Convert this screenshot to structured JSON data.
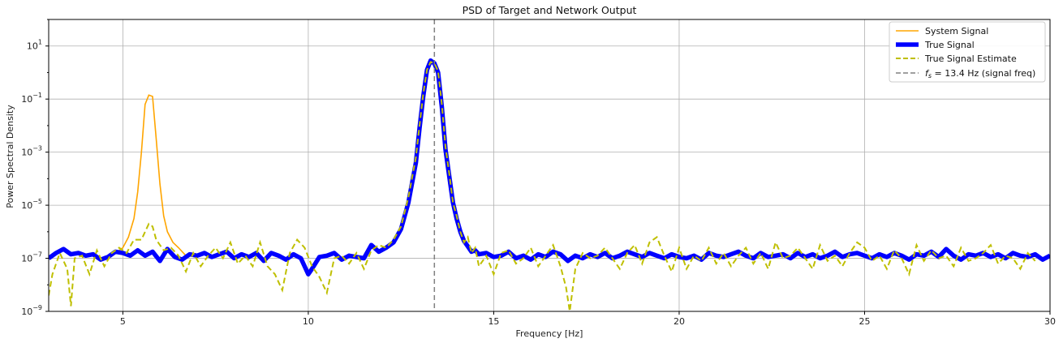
{
  "chart_data": {
    "type": "line",
    "title": "PSD of Target and Network Output",
    "xlabel": "Frequency [Hz]",
    "ylabel": "Power Spectral Density",
    "xlim": [
      3,
      30
    ],
    "ylim_log10": [
      -9,
      2
    ],
    "yscale": "log",
    "grid": true,
    "legend_position": "top-right",
    "x_ticks": [
      5,
      10,
      15,
      20,
      25,
      30
    ],
    "x_tick_labels": [
      "5",
      "10",
      "15",
      "20",
      "25",
      "30"
    ],
    "y_ticks_log10": [
      -9,
      -7,
      -5,
      -3,
      -1,
      1
    ],
    "y_tick_mantissa": "10",
    "y_tick_exponents": [
      "−9",
      "−7",
      "−5",
      "−3",
      "−1",
      "1"
    ],
    "vline": {
      "x": 13.4,
      "color": "#808080"
    },
    "legend": [
      {
        "label": "System Signal",
        "color": "#FFA500",
        "style": "solid"
      },
      {
        "label": "True Signal",
        "color": "#0000FF",
        "style": "thick"
      },
      {
        "label": "True Signal Estimate",
        "color": "#BFBF00",
        "style": "dashed"
      },
      {
        "label_prefix": "f",
        "label_sub": "s",
        "label_rest": " = 13.4 Hz (signal freq)",
        "color": "#808080",
        "style": "dashed"
      }
    ],
    "series": [
      {
        "name": "System Signal",
        "color": "#FFA500",
        "x": [
          4.8,
          5.0,
          5.15,
          5.3,
          5.4,
          5.5,
          5.6,
          5.7,
          5.8,
          5.9,
          6.0,
          6.1,
          6.2,
          6.35,
          6.5,
          6.7
        ],
        "log10_y": [
          -6.8,
          -6.6,
          -6.2,
          -5.5,
          -4.5,
          -3.0,
          -1.2,
          -0.85,
          -0.9,
          -2.5,
          -4.2,
          -5.4,
          -6.0,
          -6.4,
          -6.6,
          -6.9
        ]
      },
      {
        "name": "True Signal",
        "color": "#0000FF",
        "x": [
          3.0,
          3.2,
          3.4,
          3.6,
          3.8,
          4.0,
          4.2,
          4.4,
          4.6,
          4.8,
          5.0,
          5.2,
          5.4,
          5.6,
          5.8,
          6.0,
          6.2,
          6.4,
          6.6,
          6.8,
          7.0,
          7.2,
          7.4,
          7.6,
          7.8,
          8.0,
          8.2,
          8.4,
          8.6,
          8.8,
          9.0,
          9.2,
          9.4,
          9.6,
          9.8,
          10.0,
          10.1,
          10.3,
          10.5,
          10.7,
          10.9,
          11.1,
          11.3,
          11.5,
          11.7,
          11.9,
          12.1,
          12.3,
          12.5,
          12.7,
          12.9,
          13.0,
          13.1,
          13.2,
          13.3,
          13.4,
          13.5,
          13.6,
          13.7,
          13.8,
          13.9,
          14.0,
          14.1,
          14.2,
          14.3,
          14.4,
          14.5,
          14.6,
          14.8,
          15.0,
          15.2,
          15.4,
          15.6,
          15.8,
          16.0,
          16.2,
          16.4,
          16.6,
          16.8,
          17.0,
          17.2,
          17.4,
          17.6,
          17.8,
          18.0,
          18.2,
          18.4,
          18.6,
          18.8,
          19.0,
          19.2,
          19.4,
          19.6,
          19.8,
          20.0,
          20.2,
          20.4,
          20.6,
          20.8,
          21.0,
          21.2,
          21.4,
          21.6,
          21.8,
          22.0,
          22.2,
          22.4,
          22.6,
          22.8,
          23.0,
          23.2,
          23.4,
          23.6,
          23.8,
          24.0,
          24.2,
          24.4,
          24.6,
          24.8,
          25.0,
          25.2,
          25.4,
          25.6,
          25.8,
          26.0,
          26.2,
          26.4,
          26.6,
          26.8,
          27.0,
          27.2,
          27.4,
          27.6,
          27.8,
          28.0,
          28.2,
          28.4,
          28.6,
          28.8,
          29.0,
          29.2,
          29.4,
          29.6,
          29.8,
          30.0
        ],
        "log10_y": [
          -7.0,
          -6.8,
          -6.65,
          -6.85,
          -6.8,
          -6.9,
          -6.85,
          -7.05,
          -6.95,
          -6.75,
          -6.8,
          -6.9,
          -6.7,
          -6.9,
          -6.75,
          -7.1,
          -6.65,
          -6.95,
          -7.05,
          -6.85,
          -6.9,
          -6.8,
          -6.95,
          -6.85,
          -6.75,
          -7.0,
          -6.85,
          -6.95,
          -6.8,
          -7.1,
          -6.8,
          -6.9,
          -7.05,
          -6.85,
          -7.0,
          -7.6,
          -7.4,
          -6.95,
          -6.9,
          -6.8,
          -7.05,
          -6.9,
          -6.95,
          -7.0,
          -6.5,
          -6.75,
          -6.6,
          -6.4,
          -5.9,
          -4.9,
          -3.4,
          -2.1,
          -0.9,
          0.1,
          0.45,
          0.35,
          0.0,
          -1.3,
          -2.9,
          -3.9,
          -4.9,
          -5.5,
          -6.0,
          -6.35,
          -6.55,
          -6.75,
          -6.7,
          -6.85,
          -6.8,
          -6.95,
          -6.9,
          -6.75,
          -7.0,
          -6.9,
          -7.05,
          -6.85,
          -6.95,
          -6.75,
          -6.85,
          -7.1,
          -6.9,
          -7.0,
          -6.85,
          -6.95,
          -6.8,
          -7.0,
          -6.9,
          -6.75,
          -6.85,
          -6.95,
          -6.8,
          -6.9,
          -7.0,
          -6.85,
          -6.95,
          -7.0,
          -6.9,
          -7.05,
          -6.8,
          -6.9,
          -6.95,
          -6.85,
          -6.75,
          -6.9,
          -7.0,
          -6.8,
          -6.95,
          -6.9,
          -6.85,
          -7.0,
          -6.8,
          -6.95,
          -6.85,
          -7.0,
          -6.9,
          -6.75,
          -6.95,
          -6.85,
          -6.8,
          -6.9,
          -7.0,
          -6.85,
          -6.95,
          -6.8,
          -6.9,
          -7.05,
          -6.85,
          -6.9,
          -6.75,
          -6.95,
          -6.65,
          -6.9,
          -7.05,
          -6.85,
          -6.9,
          -6.8,
          -6.95,
          -6.85,
          -7.0,
          -6.8,
          -6.9,
          -6.95,
          -6.85,
          -7.05,
          -6.9
        ]
      },
      {
        "name": "True Signal Estimate",
        "color": "#BFBF00",
        "x": [
          3.0,
          3.1,
          3.3,
          3.5,
          3.6,
          3.7,
          3.9,
          4.1,
          4.3,
          4.5,
          4.7,
          4.9,
          5.1,
          5.3,
          5.5,
          5.7,
          5.8,
          5.9,
          6.1,
          6.3,
          6.5,
          6.7,
          6.9,
          7.1,
          7.3,
          7.5,
          7.7,
          7.9,
          8.1,
          8.3,
          8.5,
          8.7,
          8.9,
          9.1,
          9.3,
          9.5,
          9.7,
          9.9,
          10.1,
          10.3,
          10.5,
          10.7,
          10.9,
          11.1,
          11.3,
          11.5,
          11.7,
          11.9,
          12.1,
          12.3,
          12.5,
          12.7,
          12.9,
          13.0,
          13.1,
          13.2,
          13.3,
          13.4,
          13.5,
          13.6,
          13.7,
          13.8,
          13.9,
          14.0,
          14.1,
          14.2,
          14.3,
          14.4,
          14.5,
          14.6,
          14.8,
          15.0,
          15.2,
          15.4,
          15.6,
          15.8,
          16.0,
          16.2,
          16.4,
          16.6,
          16.8,
          16.95,
          17.05,
          17.2,
          17.4,
          17.6,
          17.8,
          18.0,
          18.2,
          18.4,
          18.6,
          18.8,
          19.0,
          19.2,
          19.4,
          19.6,
          19.8,
          20.0,
          20.2,
          20.4,
          20.6,
          20.8,
          21.0,
          21.2,
          21.4,
          21.6,
          21.8,
          22.0,
          22.2,
          22.4,
          22.6,
          22.8,
          23.0,
          23.2,
          23.4,
          23.6,
          23.8,
          24.0,
          24.2,
          24.4,
          24.6,
          24.8,
          25.0,
          25.2,
          25.4,
          25.6,
          25.8,
          26.0,
          26.2,
          26.4,
          26.6,
          26.8,
          27.0,
          27.2,
          27.4,
          27.6,
          27.8,
          28.0,
          28.2,
          28.4,
          28.6,
          28.8,
          29.0,
          29.2,
          29.4,
          29.6,
          29.8,
          30.0
        ],
        "log10_y": [
          -8.4,
          -7.6,
          -6.8,
          -7.4,
          -8.8,
          -7.0,
          -6.9,
          -7.6,
          -6.7,
          -7.3,
          -6.8,
          -6.6,
          -6.8,
          -6.3,
          -6.3,
          -5.7,
          -5.8,
          -6.3,
          -6.7,
          -6.6,
          -6.9,
          -7.5,
          -6.8,
          -7.3,
          -6.9,
          -6.6,
          -7.0,
          -6.4,
          -7.2,
          -6.9,
          -7.3,
          -6.4,
          -7.3,
          -7.6,
          -8.2,
          -6.8,
          -6.3,
          -6.6,
          -7.3,
          -7.7,
          -8.3,
          -7.0,
          -6.9,
          -7.2,
          -6.8,
          -7.4,
          -6.7,
          -6.5,
          -6.6,
          -6.3,
          -5.8,
          -4.7,
          -3.2,
          -2.0,
          -0.8,
          0.1,
          0.4,
          0.35,
          0.05,
          -1.2,
          -2.8,
          -3.8,
          -4.9,
          -5.4,
          -6.0,
          -6.4,
          -6.2,
          -6.8,
          -6.6,
          -7.3,
          -6.9,
          -7.6,
          -6.8,
          -6.7,
          -7.2,
          -7.0,
          -6.6,
          -7.3,
          -6.9,
          -6.5,
          -7.3,
          -8.1,
          -9.0,
          -7.4,
          -6.8,
          -7.0,
          -6.9,
          -6.6,
          -7.0,
          -7.4,
          -6.8,
          -6.5,
          -7.2,
          -6.4,
          -6.2,
          -6.9,
          -7.5,
          -6.6,
          -7.4,
          -6.9,
          -7.1,
          -6.6,
          -7.2,
          -6.8,
          -7.3,
          -6.9,
          -6.6,
          -7.2,
          -6.8,
          -7.4,
          -6.4,
          -7.0,
          -6.9,
          -6.6,
          -7.0,
          -7.4,
          -6.5,
          -7.1,
          -6.9,
          -7.3,
          -6.8,
          -6.4,
          -6.6,
          -7.1,
          -6.9,
          -7.4,
          -6.7,
          -7.0,
          -7.6,
          -6.5,
          -7.1,
          -6.7,
          -7.0,
          -6.9,
          -7.3,
          -6.6,
          -7.1,
          -7.0,
          -6.8,
          -6.5,
          -7.2,
          -6.9,
          -7.0,
          -7.4,
          -6.8,
          -7.1
        ]
      }
    ]
  }
}
